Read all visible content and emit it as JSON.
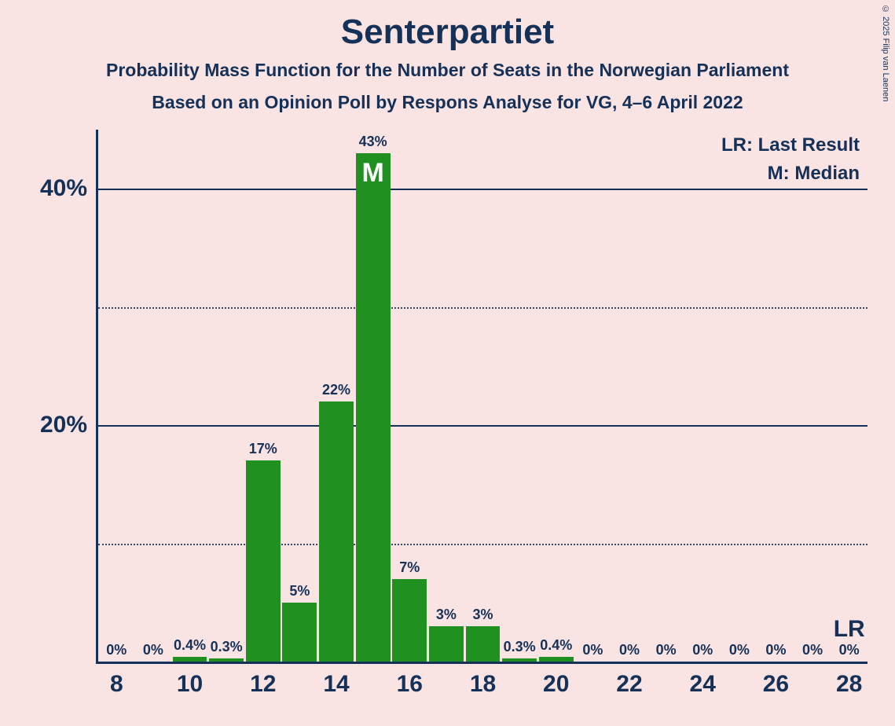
{
  "title": "Senterpartiet",
  "subtitle1": "Probability Mass Function for the Number of Seats in the Norwegian Parliament",
  "subtitle2": "Based on an Opinion Poll by Respons Analyse for VG, 4–6 April 2022",
  "copyright": "© 2025 Filip van Laenen",
  "legend_lr": "LR: Last Result",
  "legend_m": "M: Median",
  "lr_mark_text": "LR",
  "median_mark_text": "M",
  "chart": {
    "type": "bar",
    "bar_color": "#209020",
    "axis_color": "#153157",
    "background_color": "#fae3e3",
    "text_color": "#153157",
    "median_text_color": "#ffffff",
    "title_fontsize": 44,
    "subtitle_fontsize": 23,
    "label_fontsize": 18,
    "tick_fontsize": 30,
    "legend_fontsize": 24,
    "y_max": 45,
    "y_major_ticks": [
      20,
      40
    ],
    "y_minor_ticks": [
      10,
      30
    ],
    "x_tick_labels": [
      8,
      10,
      12,
      14,
      16,
      18,
      20,
      22,
      24,
      26,
      28
    ],
    "x_min": 8,
    "x_max": 28,
    "bar_width_ratio": 0.94,
    "seats": [
      8,
      9,
      10,
      11,
      12,
      13,
      14,
      15,
      16,
      17,
      18,
      19,
      20,
      21,
      22,
      23,
      24,
      25,
      26,
      27,
      28
    ],
    "values": [
      0,
      0,
      0.4,
      0.3,
      17,
      5,
      22,
      43,
      7,
      3,
      3,
      0.3,
      0.4,
      0,
      0,
      0,
      0,
      0,
      0,
      0,
      0
    ],
    "value_labels": [
      "0%",
      "0%",
      "0.4%",
      "0.3%",
      "17%",
      "5%",
      "22%",
      "43%",
      "7%",
      "3%",
      "3%",
      "0.3%",
      "0.4%",
      "0%",
      "0%",
      "0%",
      "0%",
      "0%",
      "0%",
      "0%",
      "0%"
    ],
    "median_seat": 15,
    "lr_seat": 28
  }
}
